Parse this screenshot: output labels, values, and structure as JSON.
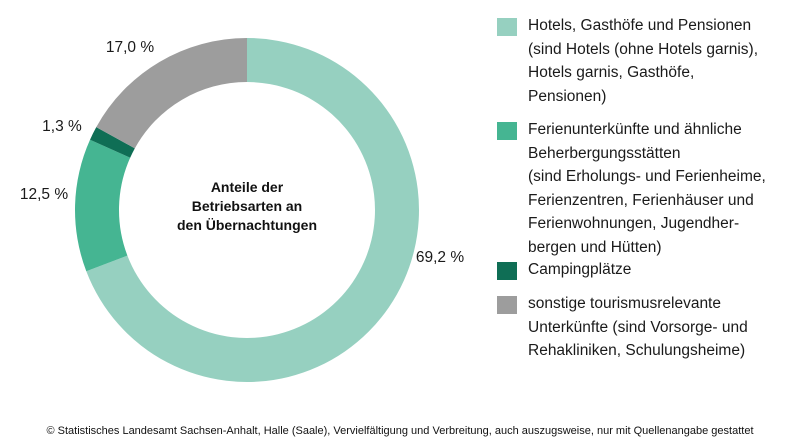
{
  "chart_data": {
    "type": "pie",
    "center_label": "Anteile der\nBetriebsarten an\nden Übernachtungen",
    "categories": [
      "Hotels, Gasthöfe und Pensionen\n(sind Hotels (ohne Hotels garnis),\nHotels garnis, Gasthöfe,\nPensionen)",
      "Ferienunterkünfte und ähnliche\nBeherbergungsstätten\n(sind Erholungs- und Ferienheime,\nFerienzentren, Ferienhäuser und\nFerienwohnungen, Jugendher-\nbergen und Hütten)",
      "Campingplätze",
      "sonstige tourismusrelevante\nUnterkünfte (sind Vorsorge- und\nRehakliniken, Schulungsheime)"
    ],
    "values": [
      69.2,
      12.5,
      1.3,
      17.0
    ],
    "value_labels": [
      "69,2 %",
      "12,5 %",
      "1,3 %",
      "17,0 %"
    ],
    "colors": [
      "#96d0c0",
      "#45b592",
      "#0f6e55",
      "#9d9d9d"
    ]
  },
  "footer": "© Statistisches Landesamt Sachsen-Anhalt, Halle (Saale), Vervielfältigung und Verbreitung, auch auszugsweise, nur mit Quellenangabe gestattet"
}
